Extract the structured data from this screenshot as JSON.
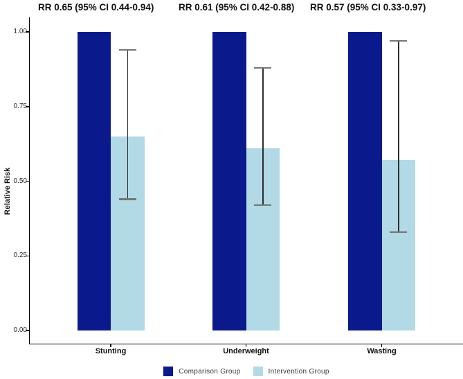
{
  "chart_data": {
    "type": "bar",
    "title": "",
    "annotations": [
      "RR 0.65 (95% CI 0.44-0.94)",
      "RR 0.61 (95% CI 0.42-0.88)",
      "RR 0.57 (95% CI 0.33-0.97)"
    ],
    "categories": [
      "Stunting",
      "Underweight",
      "Wasting"
    ],
    "series": [
      {
        "name": "Comparison Group",
        "color": "#0a1a8c",
        "values": [
          1.0,
          1.0,
          1.0
        ]
      },
      {
        "name": "Intervention Group",
        "color": "#b1d9e6",
        "values": [
          0.65,
          0.61,
          0.57
        ],
        "error_bars": [
          {
            "low": 0.44,
            "high": 0.94
          },
          {
            "low": 0.42,
            "high": 0.88
          },
          {
            "low": 0.33,
            "high": 0.97
          }
        ]
      }
    ],
    "xlabel": "",
    "ylabel": "Relative Risk",
    "ytick_labels": [
      "0.00",
      "0.25",
      "0.50",
      "0.75",
      "1.00"
    ],
    "ytick_values": [
      0.0,
      0.25,
      0.5,
      0.75,
      1.0
    ],
    "ylim": [
      0,
      1
    ],
    "grid": false,
    "legend_position": "bottom",
    "error_bar_color": "#2e2e2e",
    "axis_color": "#000000",
    "background_color": "#ffffff"
  }
}
